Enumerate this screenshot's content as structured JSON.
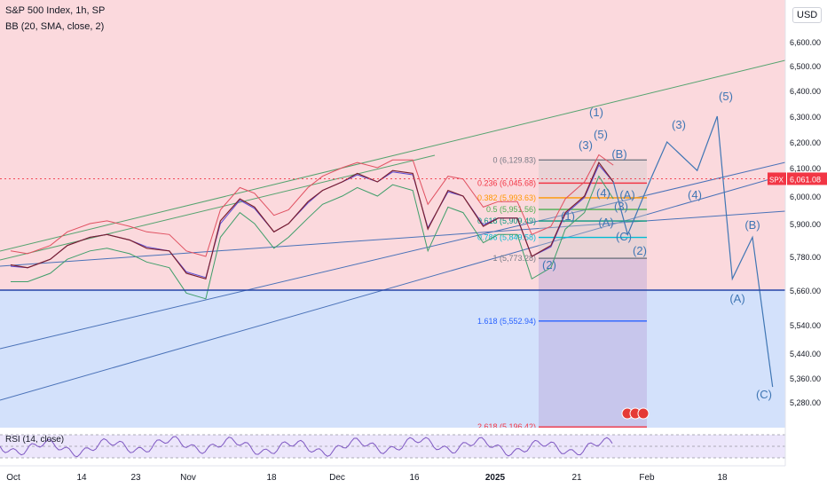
{
  "header": {
    "title": "S&P 500 Index, 1h, SP",
    "indicator": "BB (20, SMA, close, 2)",
    "currency": "USD"
  },
  "rsi": {
    "label": "RSI (14, close)"
  },
  "price_axis": {
    "ticks": [
      "6,600.00",
      "6,500.00",
      "6,400.00",
      "6,300.00",
      "6,200.00",
      "6,100.00",
      "6,000.00",
      "5,900.00",
      "5,780.00",
      "5,660.00",
      "5,540.00",
      "5,440.00",
      "5,360.00",
      "5,280.00"
    ],
    "last_price_tag": "SPX",
    "last_price": "6,061.08"
  },
  "time_axis": {
    "ticks": [
      "Oct",
      "14",
      "23",
      "Nov",
      "18",
      "Dec",
      "16",
      "2025",
      "21",
      "Feb",
      "18"
    ]
  },
  "fibonacci": [
    {
      "label": "0 (6,129.83)"
    },
    {
      "label": "0.236 (6,045.68)"
    },
    {
      "label": "0.382 (5,993.63)"
    },
    {
      "label": "0.5 (5,951.56)"
    },
    {
      "label": "0.618 (5,909.49)"
    },
    {
      "label": "0.786 (5,849.58)"
    },
    {
      "label": "1 (5,773.28)"
    },
    {
      "label": "1.618 (5,552.94)"
    },
    {
      "label": "2.618 (5,196.42)"
    }
  ],
  "wave_labels": [
    "(1)",
    "(3)",
    "(5)",
    "(B)",
    "(1)",
    "(4)",
    "(A)",
    "(C)",
    "(2)",
    "(2)",
    "(3)",
    "(4)",
    "(5)",
    "(B)",
    "(A)",
    "(C)",
    "(3)",
    "(A)"
  ],
  "colors": {
    "zone_upper": "#fbd9dd",
    "zone_lower": "#d3e1fb",
    "wave": "#3f76b4",
    "channel": "#55a36f",
    "price_tag": "#f23645",
    "fib_0": "#787b86",
    "fib_236": "#f23645",
    "fib_382": "#ff9800",
    "fib_5": "#4caf50",
    "fib_618": "#089981",
    "fib_786": "#00bcd4",
    "fib_1": "#787b86",
    "fib_1618": "#2962ff",
    "fib_2618": "#f23645"
  },
  "chart_data": {
    "type": "line",
    "title": "S&P 500 Index, 1h, SP",
    "x_range": [
      "2024-10-01",
      "2025-03-05"
    ],
    "y_range": [
      5200,
      6680
    ],
    "price": {
      "x": [
        "2024-10-01",
        "2024-10-04",
        "2024-10-08",
        "2024-10-11",
        "2024-10-15",
        "2024-10-18",
        "2024-10-22",
        "2024-10-25",
        "2024-10-29",
        "2024-11-01",
        "2024-11-05",
        "2024-11-08",
        "2024-11-12",
        "2024-11-15",
        "2024-11-19",
        "2024-11-22",
        "2024-11-26",
        "2024-11-29",
        "2024-12-03",
        "2024-12-06",
        "2024-12-10",
        "2024-12-13",
        "2024-12-17",
        "2024-12-20",
        "2024-12-24",
        "2024-12-27",
        "2024-12-31",
        "2025-01-03",
        "2025-01-07",
        "2025-01-10",
        "2025-01-14",
        "2025-01-17",
        "2025-01-21",
        "2025-01-24",
        "2025-01-27"
      ],
      "y": [
        5750,
        5740,
        5770,
        5820,
        5850,
        5860,
        5840,
        5810,
        5800,
        5720,
        5700,
        5910,
        5990,
        5960,
        5870,
        5900,
        5980,
        6020,
        6050,
        6080,
        6050,
        6090,
        6080,
        5880,
        6020,
        6000,
        5890,
        5920,
        5920,
        5780,
        5820,
        5940,
        6000,
        6120,
        6050
      ]
    },
    "bb_upper": [
      5800,
      5790,
      5820,
      5870,
      5900,
      5910,
      5890,
      5870,
      5860,
      5800,
      5780,
      5950,
      6030,
      6010,
      5930,
      5950,
      6030,
      6070,
      6100,
      6120,
      6100,
      6130,
      6130,
      5970,
      6070,
      6060,
      5960,
      5980,
      5980,
      5860,
      5890,
      5990,
      6050,
      6150,
      6110
    ],
    "bb_lower": [
      5690,
      5690,
      5720,
      5770,
      5800,
      5810,
      5790,
      5760,
      5740,
      5650,
      5630,
      5850,
      5940,
      5900,
      5810,
      5850,
      5920,
      5970,
      6000,
      6030,
      6000,
      6040,
      6020,
      5800,
      5960,
      5940,
      5830,
      5860,
      5860,
      5700,
      5740,
      5880,
      5940,
      6070,
      5990
    ],
    "projection": {
      "x": [
        "2025-01-27",
        "2025-01-30",
        "2025-02-04",
        "2025-02-07",
        "2025-02-13",
        "2025-02-17",
        "2025-02-20",
        "2025-02-24",
        "2025-02-28"
      ],
      "y": [
        6050,
        5860,
        6070,
        6200,
        6090,
        6300,
        5700,
        5850,
        5330
      ]
    },
    "fib_levels": [
      6129.83,
      6045.68,
      5993.63,
      5951.56,
      5909.49,
      5849.58,
      5773.28,
      5552.94,
      5196.42
    ],
    "horizontal_line": 5660,
    "last_price": 6061.08,
    "rsi_range": [
      30,
      70
    ]
  }
}
